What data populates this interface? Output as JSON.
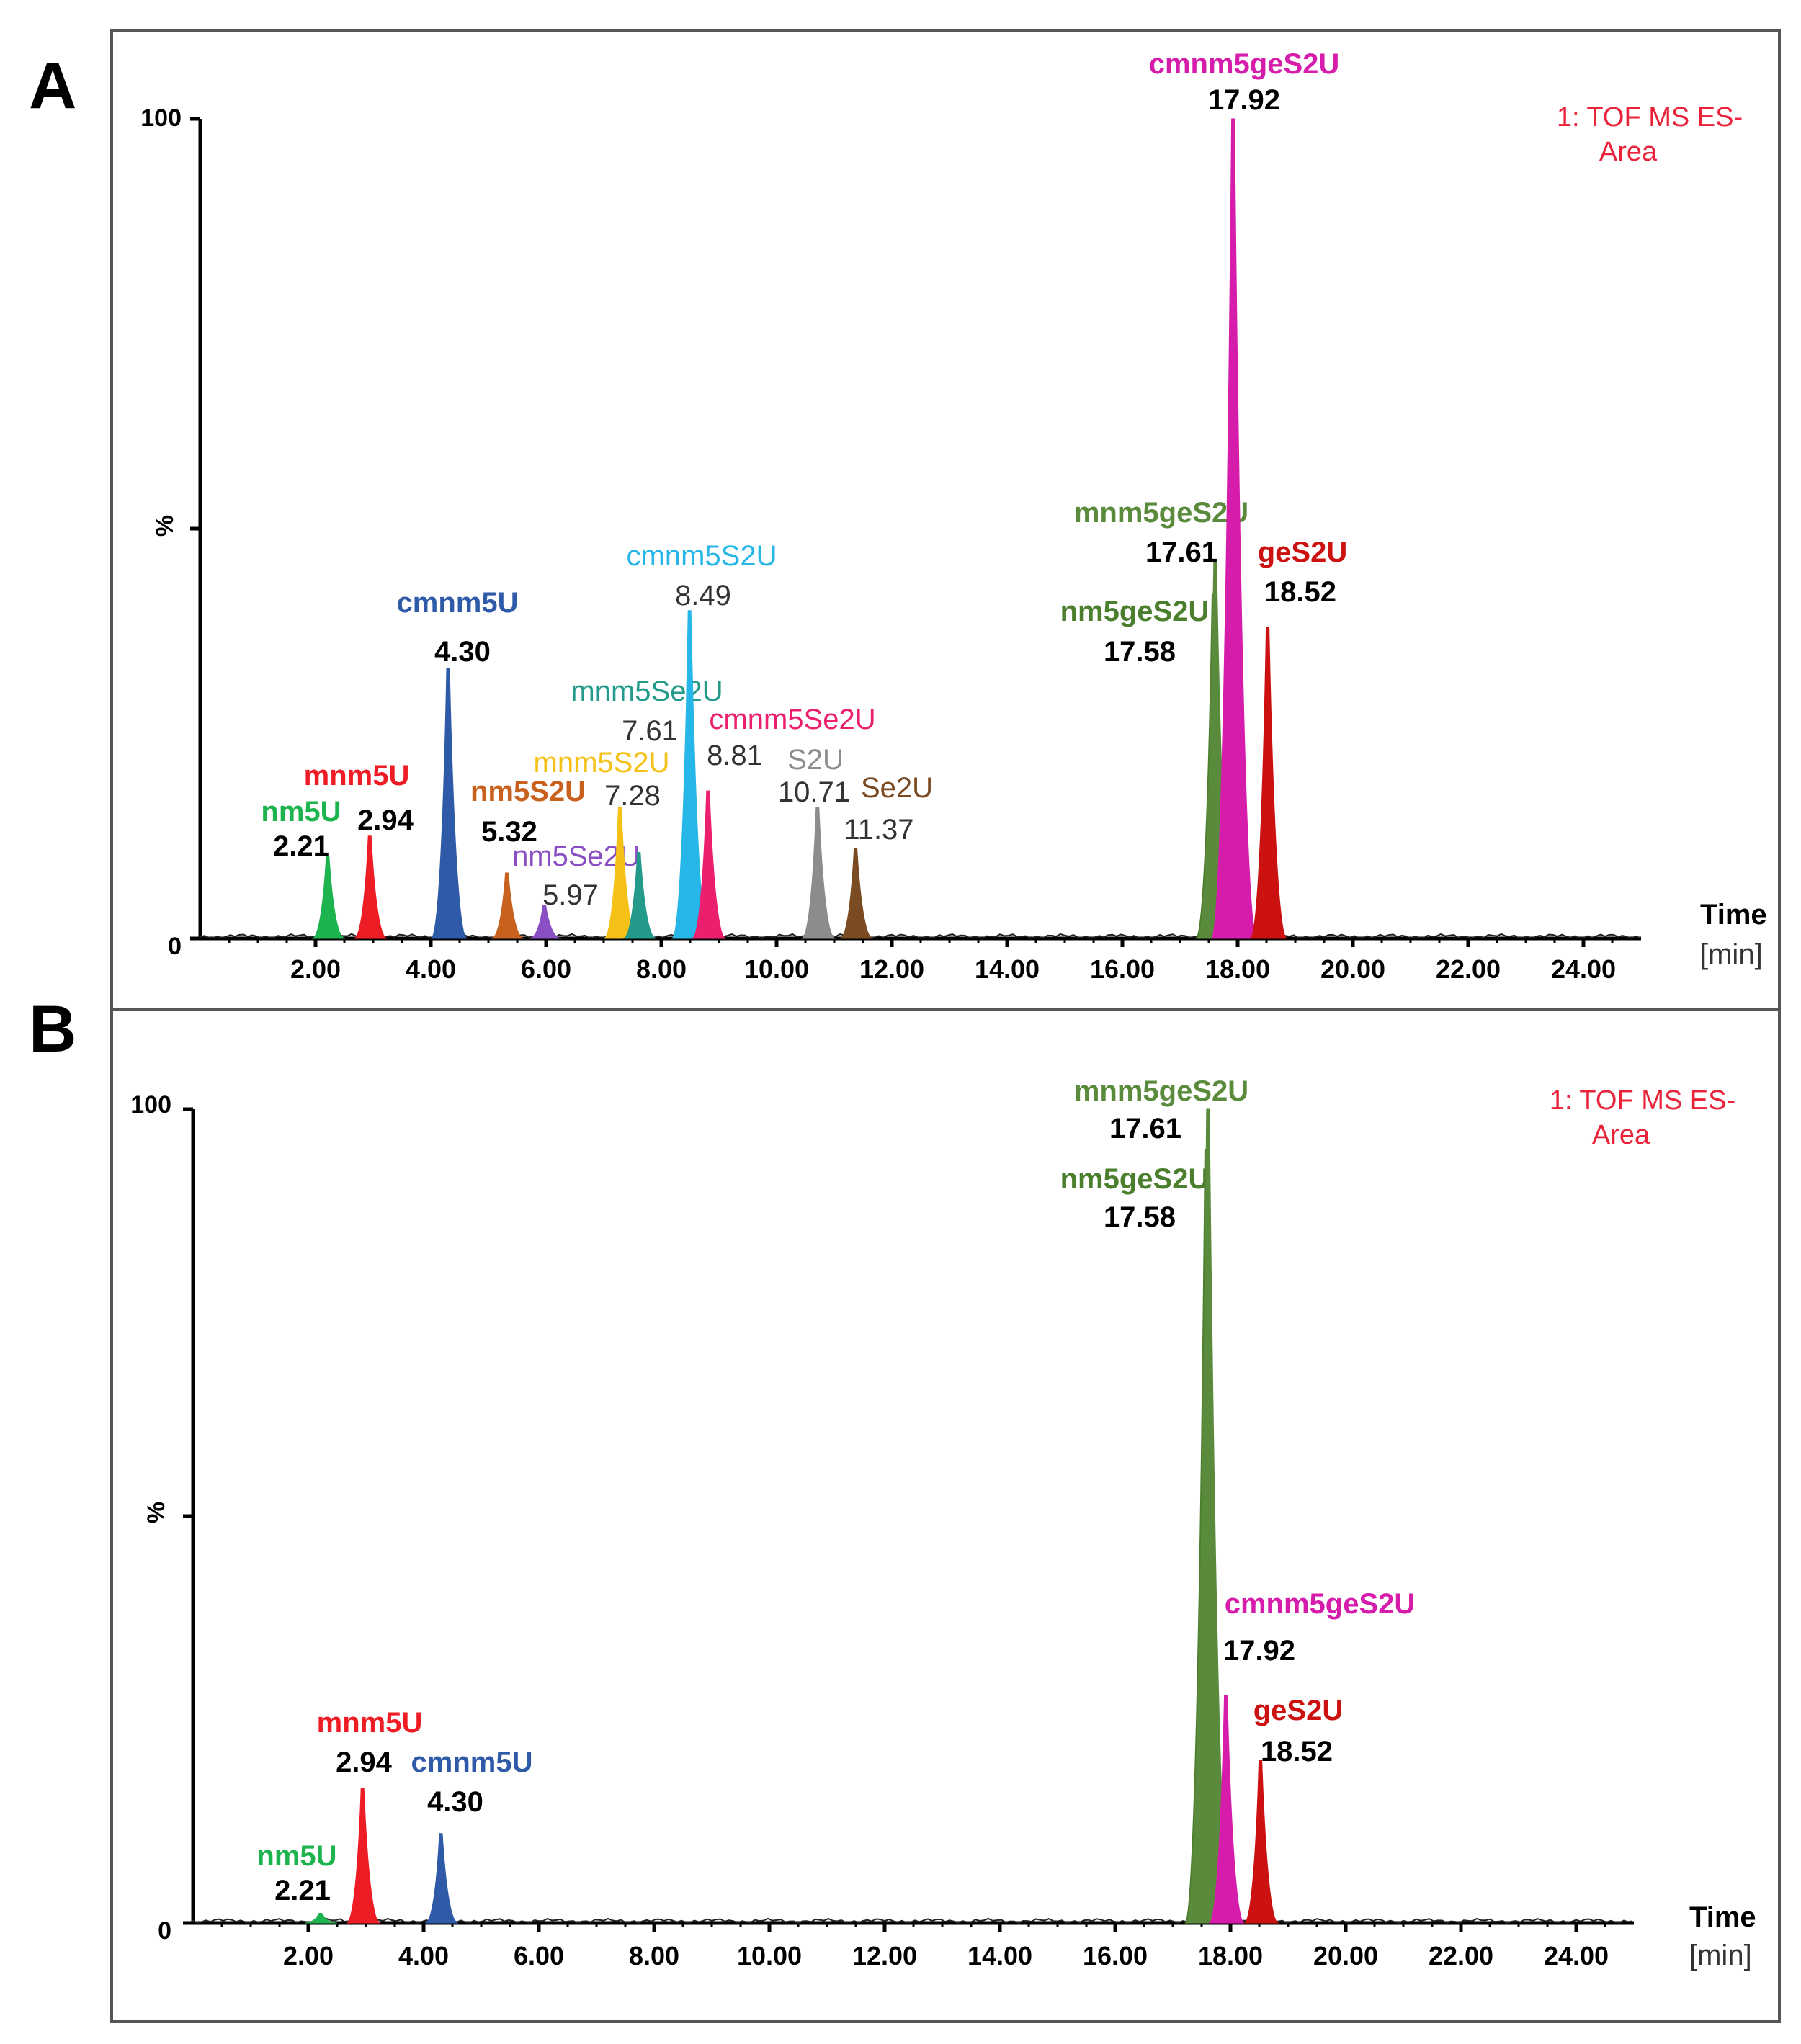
{
  "chart_data": [
    {
      "type": "line",
      "panel_label": "A",
      "detector_line1": "1: TOF MS ES-",
      "detector_line2": "Area",
      "ylabel": "%",
      "y_max_label": "100",
      "y_min_label": "0",
      "xlabel": "Time",
      "xunit": "[min]",
      "xlim": [
        0,
        25
      ],
      "ylim": [
        0,
        100
      ],
      "x_ticks": [
        "2.00",
        "4.00",
        "6.00",
        "8.00",
        "10.00",
        "12.00",
        "14.00",
        "16.00",
        "18.00",
        "20.00",
        "22.00",
        "24.00"
      ],
      "colors": {
        "nm5U": "#1db34f",
        "mnm5U": "#ee1c25",
        "cmnm5U": "#2e5aa8",
        "nm5S2U": "#c8611e",
        "nm5Se2U": "#8a4fc4",
        "mnm5S2U": "#f5c116",
        "mnm5Se2U": "#239a8a",
        "cmnm5S2U": "#27b6e8",
        "cmnm5Se2U": "#ec1e6e",
        "S2U": "#8c8c8c",
        "Se2U": "#7a4a22",
        "nm5geS2U": "#4b7f2e",
        "mnm5geS2U": "#5a8a3c",
        "cmnm5geS2U": "#d61caa",
        "geS2U": "#cc1111"
      },
      "series": [
        {
          "name": "nm5U",
          "rt": "2.21",
          "x": 2.21,
          "y": 10,
          "name_bold": true,
          "rt_bold": true
        },
        {
          "name": "mnm5U",
          "rt": "2.94",
          "x": 2.94,
          "y": 12.5,
          "name_bold": true,
          "rt_bold": true
        },
        {
          "name": "cmnm5U",
          "rt": "4.30",
          "x": 4.3,
          "y": 33,
          "name_bold": true,
          "rt_bold": true
        },
        {
          "name": "nm5S2U",
          "rt": "5.32",
          "x": 5.32,
          "y": 8,
          "name_bold": true,
          "rt_bold": true
        },
        {
          "name": "nm5Se2U",
          "rt": "5.97",
          "x": 5.97,
          "y": 4,
          "name_bold": false,
          "rt_bold": false
        },
        {
          "name": "mnm5S2U",
          "rt": "7.28",
          "x": 7.28,
          "y": 16,
          "name_bold": false,
          "rt_bold": false
        },
        {
          "name": "mnm5Se2U",
          "rt": "7.61",
          "x": 7.61,
          "y": 10.5,
          "name_bold": false,
          "rt_bold": false
        },
        {
          "name": "cmnm5S2U",
          "rt": "8.49",
          "x": 8.49,
          "y": 40,
          "name_bold": false,
          "rt_bold": false
        },
        {
          "name": "cmnm5Se2U",
          "rt": "8.81",
          "x": 8.81,
          "y": 18,
          "name_bold": false,
          "rt_bold": false
        },
        {
          "name": "S2U",
          "rt": "10.71",
          "x": 10.71,
          "y": 16,
          "name_bold": false,
          "rt_bold": false
        },
        {
          "name": "Se2U",
          "rt": "11.37",
          "x": 11.37,
          "y": 11,
          "name_bold": false,
          "rt_bold": false
        },
        {
          "name": "nm5geS2U",
          "rt": "17.58",
          "x": 17.58,
          "y": 42,
          "name_bold": true,
          "rt_bold": true
        },
        {
          "name": "mnm5geS2U",
          "rt": "17.61",
          "x": 17.61,
          "y": 46,
          "name_bold": true,
          "rt_bold": true
        },
        {
          "name": "cmnm5geS2U",
          "rt": "17.92",
          "x": 17.92,
          "y": 100,
          "name_bold": true,
          "rt_bold": true
        },
        {
          "name": "geS2U",
          "rt": "18.52",
          "x": 18.52,
          "y": 38,
          "name_bold": true,
          "rt_bold": true
        }
      ]
    },
    {
      "type": "line",
      "panel_label": "B",
      "detector_line1": "1: TOF MS ES-",
      "detector_line2": "Area",
      "ylabel": "%",
      "y_max_label": "100",
      "y_min_label": "0",
      "xlabel": "Time",
      "xunit": "[min]",
      "xlim": [
        0,
        25
      ],
      "ylim": [
        0,
        100
      ],
      "x_ticks": [
        "2.00",
        "4.00",
        "6.00",
        "8.00",
        "10.00",
        "12.00",
        "14.00",
        "16.00",
        "18.00",
        "20.00",
        "22.00",
        "24.00"
      ],
      "colors": {
        "nm5U": "#1db34f",
        "mnm5U": "#ee1c25",
        "cmnm5U": "#2e5aa8",
        "nm5geS2U": "#4b7f2e",
        "mnm5geS2U": "#5a8a3c",
        "cmnm5geS2U": "#d61caa",
        "geS2U": "#cc1111"
      },
      "series": [
        {
          "name": "nm5U",
          "rt": "2.21",
          "x": 2.21,
          "y": 1.2,
          "name_bold": true,
          "rt_bold": true
        },
        {
          "name": "mnm5U",
          "rt": "2.94",
          "x": 2.94,
          "y": 16.5,
          "name_bold": true,
          "rt_bold": true
        },
        {
          "name": "cmnm5U",
          "rt": "4.30",
          "x": 4.3,
          "y": 11,
          "name_bold": true,
          "rt_bold": true
        },
        {
          "name": "nm5geS2U",
          "rt": "17.58",
          "x": 17.58,
          "y": 95,
          "name_bold": true,
          "rt_bold": true
        },
        {
          "name": "mnm5geS2U",
          "rt": "17.61",
          "x": 17.61,
          "y": 100,
          "name_bold": true,
          "rt_bold": true
        },
        {
          "name": "cmnm5geS2U",
          "rt": "17.92",
          "x": 17.92,
          "y": 28,
          "name_bold": true,
          "rt_bold": true
        },
        {
          "name": "geS2U",
          "rt": "18.52",
          "x": 18.52,
          "y": 20,
          "name_bold": true,
          "rt_bold": true
        }
      ]
    }
  ]
}
